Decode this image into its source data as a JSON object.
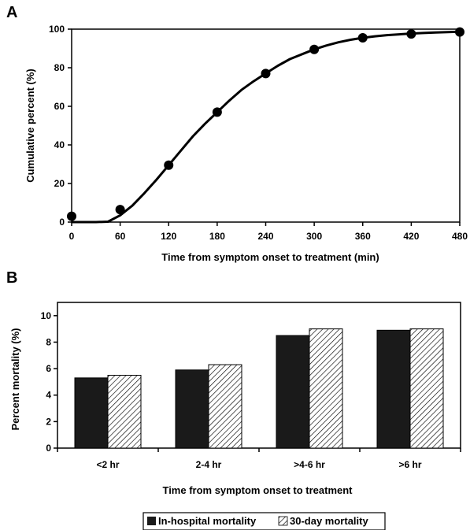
{
  "chart_data": [
    {
      "panel": "A",
      "type": "line",
      "xlabel": "Time from symptom onset to treatment (min)",
      "ylabel": "Cumulative percent (%)",
      "xlim": [
        0,
        480
      ],
      "ylim": [
        0,
        100
      ],
      "xticks": [
        0,
        60,
        120,
        180,
        240,
        300,
        360,
        420,
        480
      ],
      "yticks": [
        0,
        20,
        40,
        60,
        80,
        100
      ],
      "grid": false,
      "series": [
        {
          "x": [
            0,
            60,
            120,
            180,
            240,
            300,
            360,
            420,
            480
          ],
          "y": [
            3,
            6.5,
            29.5,
            57,
            77,
            89.5,
            95.5,
            97.5,
            98.5
          ],
          "style": "markers",
          "color": "#000000"
        },
        {
          "x": [
            0,
            30,
            45,
            60,
            75,
            90,
            105,
            120,
            135,
            150,
            165,
            180,
            195,
            210,
            225,
            240,
            255,
            270,
            285,
            300,
            315,
            330,
            345,
            360,
            375,
            390,
            405,
            420,
            435,
            450,
            465,
            480
          ],
          "y": [
            0,
            0,
            0.2,
            3.5,
            8.5,
            15,
            22,
            29.5,
            37,
            44.5,
            51,
            57,
            63,
            68.5,
            73,
            77,
            81,
            84.5,
            87,
            89.5,
            91.5,
            93.2,
            94.5,
            95.5,
            96.3,
            96.9,
            97.3,
            97.7,
            98,
            98.3,
            98.5,
            98.7
          ],
          "style": "smooth-line",
          "color": "#000000"
        }
      ]
    },
    {
      "panel": "B",
      "type": "bar",
      "xlabel": "Time from symptom onset to treatment",
      "ylabel": "Percent mortality (%)",
      "categories": [
        "<2 hr",
        "2-4 hr",
        ">4-6 hr",
        ">6 hr"
      ],
      "ylim": [
        0,
        11
      ],
      "yticks": [
        0,
        2,
        4,
        6,
        8,
        10
      ],
      "grid": false,
      "legend_position": "bottom-center",
      "series": [
        {
          "name": "In-hospital mortality",
          "values": [
            5.3,
            5.9,
            8.5,
            8.9
          ],
          "fill": "solid",
          "color": "#1a1a1a"
        },
        {
          "name": "30-day mortality",
          "values": [
            5.5,
            6.3,
            9.0,
            9.0
          ],
          "fill": "hatched",
          "color": "#000000"
        }
      ]
    }
  ],
  "panels": {
    "a_letter": "A",
    "b_letter": "B"
  }
}
